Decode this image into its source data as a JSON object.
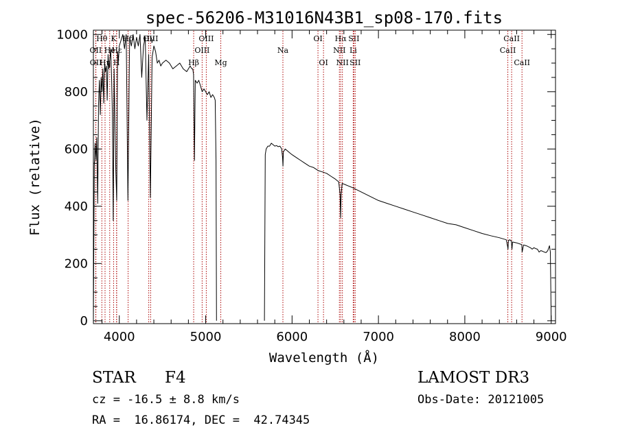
{
  "chart_data": {
    "type": "line",
    "title": "spec-56206-M31016N43B1_sp08-170.fits",
    "xlabel": "Wavelength (Å)",
    "ylabel": "Flux (relative)",
    "xlim": [
      3700,
      9050
    ],
    "ylim": [
      -10,
      1015
    ],
    "xticks": [
      4000,
      5000,
      6000,
      7000,
      8000,
      9000
    ],
    "yticks": [
      0,
      200,
      400,
      600,
      800,
      1000
    ],
    "grid": false,
    "line_color": "#000000",
    "marker_color": "#aa0000",
    "series": [
      {
        "name": "flux",
        "segments": [
          {
            "x": [
              3700,
              3710,
              3720,
              3730,
              3740,
              3750,
              3760,
              3770,
              3780,
              3790,
              3800,
              3810,
              3820,
              3830,
              3840,
              3850,
              3860,
              3870,
              3880,
              3890,
              3900,
              3910,
              3920,
              3930,
              3940,
              3950,
              3960,
              3970,
              3980,
              3990,
              4000,
              4020,
              4040,
              4060,
              4080,
              4100,
              4120,
              4140,
              4160,
              4180,
              4200,
              4220,
              4240,
              4260,
              4280,
              4300,
              4320,
              4340,
              4360,
              4380,
              4400,
              4420,
              4440,
              4460,
              4480,
              4500,
              4540,
              4580,
              4620,
              4660,
              4700,
              4740,
              4780,
              4820,
              4840,
              4850,
              4860,
              4870,
              4880,
              4900,
              4920,
              4940,
              4960,
              4980,
              5000,
              5020,
              5040,
              5060,
              5080,
              5100,
              5110,
              5120,
              5125
            ],
            "y": [
              0,
              540,
              620,
              560,
              640,
              410,
              760,
              840,
              720,
              850,
              800,
              880,
              760,
              900,
              870,
              890,
              770,
              930,
              880,
              910,
              950,
              860,
              720,
              350,
              880,
              690,
              520,
              420,
              940,
              910,
              960,
              980,
              1000,
              950,
              1000,
              420,
              990,
              960,
              1000,
              950,
              990,
              960,
              1000,
              850,
              960,
              990,
              700,
              930,
              430,
              920,
              960,
              940,
              900,
              910,
              890,
              900,
              910,
              900,
              880,
              890,
              900,
              880,
              870,
              890,
              880,
              880,
              860,
              560,
              840,
              830,
              840,
              820,
              800,
              810,
              800,
              790,
              800,
              780,
              790,
              780,
              770,
              560,
              0
            ]
          },
          {
            "x": [
              5680,
              5690,
              5700,
              5720,
              5740,
              5760,
              5780,
              5800,
              5820,
              5840,
              5860,
              5880,
              5890,
              5895,
              5900,
              5920,
              5940,
              5960,
              5980,
              6000,
              6050,
              6100,
              6150,
              6200,
              6250,
              6300,
              6350,
              6400,
              6450,
              6500,
              6540,
              6556,
              6562,
              6568,
              6580,
              6620,
              6700,
              6800,
              6900,
              7000,
              7100,
              7200,
              7300,
              7400,
              7500,
              7600,
              7700,
              7800,
              7900,
              8000,
              8100,
              8200,
              8300,
              8400,
              8480,
              8495,
              8500,
              8505,
              8520,
              8540,
              8546,
              8552,
              8570,
              8600,
              8640,
              8660,
              8664,
              8680,
              8700,
              8720,
              8740,
              8760,
              8780,
              8800,
              8820,
              8840,
              8860,
              8880,
              8900,
              8920,
              8940,
              8960,
              8980,
              8990,
              9000
            ],
            "y": [
              0,
              580,
              600,
              610,
              610,
              620,
              615,
              610,
              612,
              608,
              610,
              600,
              570,
              540,
              590,
              600,
              595,
              590,
              585,
              580,
              570,
              560,
              550,
              540,
              535,
              525,
              520,
              515,
              505,
              495,
              485,
              440,
              360,
              440,
              480,
              475,
              465,
              450,
              435,
              420,
              410,
              400,
              390,
              380,
              370,
              360,
              350,
              340,
              335,
              325,
              315,
              305,
              297,
              290,
              283,
              260,
              250,
              280,
              283,
              278,
              250,
              275,
              274,
              272,
              268,
              266,
              240,
              265,
              263,
              261,
              258,
              255,
              250,
              255,
              252,
              250,
              240,
              245,
              243,
              240,
              238,
              245,
              262,
              240,
              0
            ]
          }
        ]
      }
    ],
    "line_markers": [
      {
        "label": "Hθ",
        "x": 3798,
        "row": 1
      },
      {
        "label": "OII",
        "x": 3727,
        "row": 2
      },
      {
        "label": "OII",
        "x": 3729,
        "row": 3
      },
      {
        "label": "Hη",
        "x": 3835,
        "row": 3
      },
      {
        "label": "He",
        "x": 3889,
        "row": 2
      },
      {
        "label": "K",
        "x": 3934,
        "row": 1
      },
      {
        "label": "H",
        "x": 3968,
        "row": 3
      },
      {
        "label": "Hε",
        "x": 3970,
        "row": 2
      },
      {
        "label": "Hδ",
        "x": 4102,
        "row": 1
      },
      {
        "label": "Hγ",
        "x": 4341,
        "row": 1
      },
      {
        "label": "OIII",
        "x": 4363,
        "row": 1
      },
      {
        "label": "Hβ",
        "x": 4861,
        "row": 3
      },
      {
        "label": "OIII",
        "x": 4959,
        "row": 2
      },
      {
        "label": "OIII",
        "x": 5007,
        "row": 1
      },
      {
        "label": "Mg",
        "x": 5175,
        "row": 3
      },
      {
        "label": "Na",
        "x": 5894,
        "row": 2
      },
      {
        "label": "OI",
        "x": 6300,
        "row": 1
      },
      {
        "label": "OI",
        "x": 6364,
        "row": 3
      },
      {
        "label": "NII",
        "x": 6548,
        "row": 2
      },
      {
        "label": "Hα",
        "x": 6563,
        "row": 1
      },
      {
        "label": "NII",
        "x": 6583,
        "row": 3
      },
      {
        "label": "Li",
        "x": 6708,
        "row": 2
      },
      {
        "label": "SII",
        "x": 6716,
        "row": 1
      },
      {
        "label": "SII",
        "x": 6731,
        "row": 3
      },
      {
        "label": "CaII",
        "x": 8498,
        "row": 2
      },
      {
        "label": "CaII",
        "x": 8542,
        "row": 1
      },
      {
        "label": "CaII",
        "x": 8662,
        "row": 3
      }
    ]
  },
  "info": {
    "class_label": "STAR",
    "subclass": "F4",
    "cz_line": "cz = -16.5 ± 8.8 km/s",
    "coords_line": "RA =  16.86174, DEC =  42.74345",
    "survey": "LAMOST DR3",
    "obs_date_line": "Obs-Date: 20121005"
  }
}
